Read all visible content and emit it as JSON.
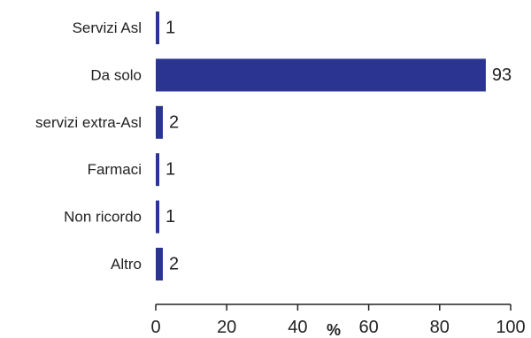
{
  "chart_data": {
    "type": "bar",
    "orientation": "horizontal",
    "categories": [
      "Servizi Asl",
      "Da solo",
      "servizi extra-Asl",
      "Farmaci",
      "Non ricordo",
      "Altro"
    ],
    "values": [
      1,
      93,
      2,
      1,
      1,
      2
    ],
    "value_labels": [
      "1",
      "93",
      "2",
      "1",
      "1",
      "2"
    ],
    "xlabel": "%",
    "xlim": [
      0,
      100
    ],
    "xticks": [
      "0",
      "20",
      "40",
      "60",
      "80",
      "100"
    ],
    "grid": false,
    "legend": "none",
    "bar_color": "#2b3591"
  }
}
